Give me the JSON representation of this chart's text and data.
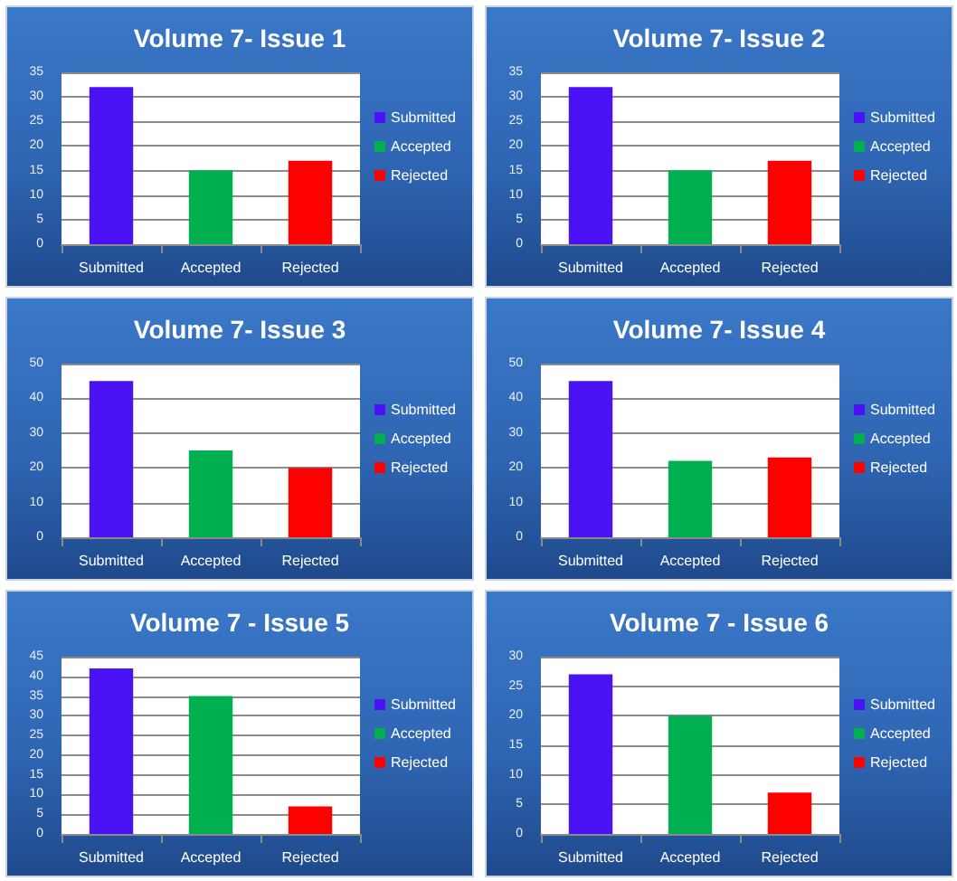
{
  "chart_data": [
    {
      "type": "bar",
      "title": "Volume 7- Issue 1",
      "categories": [
        "Submitted",
        "Accepted",
        "Rejected"
      ],
      "series": [
        {
          "name": "Submitted",
          "color": "#4a12f5",
          "values": [
            32,
            null,
            null
          ]
        },
        {
          "name": "Accepted",
          "color": "#00b050",
          "values": [
            null,
            15,
            null
          ]
        },
        {
          "name": "Rejected",
          "color": "#ff0000",
          "values": [
            null,
            null,
            17
          ]
        }
      ],
      "ylim": [
        0,
        35
      ],
      "yticks": [
        0,
        5,
        10,
        15,
        20,
        25,
        30,
        35
      ],
      "grid": "y",
      "legend": "right"
    },
    {
      "type": "bar",
      "title": "Volume 7- Issue 2",
      "categories": [
        "Submitted",
        "Accepted",
        "Rejected"
      ],
      "series": [
        {
          "name": "Submitted",
          "color": "#4a12f5",
          "values": [
            32,
            null,
            null
          ]
        },
        {
          "name": "Accepted",
          "color": "#00b050",
          "values": [
            null,
            15,
            null
          ]
        },
        {
          "name": "Rejected",
          "color": "#ff0000",
          "values": [
            null,
            null,
            17
          ]
        }
      ],
      "ylim": [
        0,
        35
      ],
      "yticks": [
        0,
        5,
        10,
        15,
        20,
        25,
        30,
        35
      ],
      "grid": "y",
      "legend": "right"
    },
    {
      "type": "bar",
      "title": "Volume 7- Issue 3",
      "categories": [
        "Submitted",
        "Accepted",
        "Rejected"
      ],
      "series": [
        {
          "name": "Submitted",
          "color": "#4a12f5",
          "values": [
            45,
            null,
            null
          ]
        },
        {
          "name": "Accepted",
          "color": "#00b050",
          "values": [
            null,
            25,
            null
          ]
        },
        {
          "name": "Rejected",
          "color": "#ff0000",
          "values": [
            null,
            null,
            20
          ]
        }
      ],
      "ylim": [
        0,
        50
      ],
      "yticks": [
        0,
        10,
        20,
        30,
        40,
        50
      ],
      "grid": "y",
      "legend": "right"
    },
    {
      "type": "bar",
      "title": "Volume 7- Issue 4",
      "categories": [
        "Submitted",
        "Accepted",
        "Rejected"
      ],
      "series": [
        {
          "name": "Submitted",
          "color": "#4a12f5",
          "values": [
            45,
            null,
            null
          ]
        },
        {
          "name": "Accepted",
          "color": "#00b050",
          "values": [
            null,
            22,
            null
          ]
        },
        {
          "name": "Rejected",
          "color": "#ff0000",
          "values": [
            null,
            null,
            23
          ]
        }
      ],
      "ylim": [
        0,
        50
      ],
      "yticks": [
        0,
        10,
        20,
        30,
        40,
        50
      ],
      "grid": "y",
      "legend": "right"
    },
    {
      "type": "bar",
      "title": "Volume 7 - Issue 5",
      "categories": [
        "Submitted",
        "Accepted",
        "Rejected"
      ],
      "series": [
        {
          "name": "Submitted",
          "color": "#4a12f5",
          "values": [
            42,
            null,
            null
          ]
        },
        {
          "name": "Accepted",
          "color": "#00b050",
          "values": [
            null,
            35,
            null
          ]
        },
        {
          "name": "Rejected",
          "color": "#ff0000",
          "values": [
            null,
            null,
            7
          ]
        }
      ],
      "ylim": [
        0,
        45
      ],
      "yticks": [
        0,
        5,
        10,
        15,
        20,
        25,
        30,
        35,
        40,
        45
      ],
      "grid": "y",
      "legend": "right"
    },
    {
      "type": "bar",
      "title": "Volume 7 - Issue 6",
      "categories": [
        "Submitted",
        "Accepted",
        "Rejected"
      ],
      "series": [
        {
          "name": "Submitted",
          "color": "#4a12f5",
          "values": [
            27,
            null,
            null
          ]
        },
        {
          "name": "Accepted",
          "color": "#00b050",
          "values": [
            null,
            20,
            null
          ]
        },
        {
          "name": "Rejected",
          "color": "#ff0000",
          "values": [
            null,
            null,
            7
          ]
        }
      ],
      "ylim": [
        0,
        30
      ],
      "yticks": [
        0,
        5,
        10,
        15,
        20,
        25,
        30
      ],
      "grid": "y",
      "legend": "right"
    }
  ]
}
